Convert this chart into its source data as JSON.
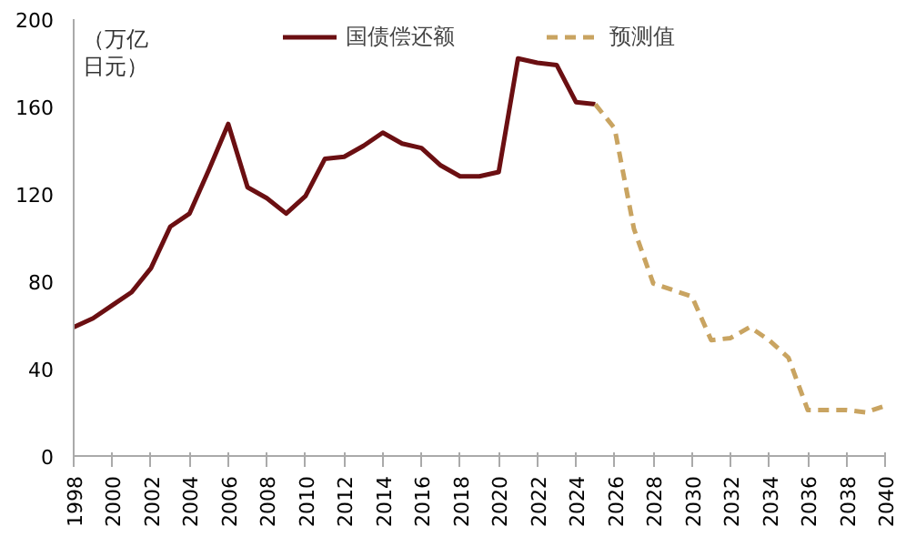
{
  "chart_data": {
    "type": "line",
    "ylabel": "（万亿日元）",
    "xlim": [
      1998,
      2040
    ],
    "xticks": [
      1998,
      2000,
      2002,
      2004,
      2006,
      2008,
      2010,
      2012,
      2014,
      2016,
      2018,
      2020,
      2022,
      2024,
      2026,
      2028,
      2030,
      2032,
      2034,
      2036,
      2038,
      2040
    ],
    "ylim": [
      0,
      200
    ],
    "yticks": [
      0,
      40,
      80,
      120,
      160,
      200
    ],
    "grid": false,
    "legend": "top",
    "series": [
      {
        "name": "国债偿还额",
        "color": "#6b0f12",
        "line_style": "solid",
        "x": [
          1998,
          1999,
          2000,
          2001,
          2002,
          2003,
          2004,
          2005,
          2006,
          2007,
          2008,
          2009,
          2010,
          2011,
          2012,
          2013,
          2014,
          2015,
          2016,
          2017,
          2018,
          2019,
          2020,
          2021,
          2022,
          2023,
          2024,
          2025
        ],
        "values": [
          59,
          63,
          69,
          75,
          86,
          105,
          111,
          131,
          152,
          123,
          118,
          111,
          119,
          136,
          137,
          142,
          148,
          143,
          141,
          133,
          128,
          128,
          130,
          182,
          180,
          179,
          162,
          161
        ]
      },
      {
        "name": "预测值",
        "color": "#c9a461",
        "line_style": "dashed",
        "x": [
          2025,
          2026,
          2027,
          2028,
          2029,
          2030,
          2031,
          2032,
          2033,
          2034,
          2035,
          2036,
          2037,
          2038,
          2039,
          2040
        ],
        "values": [
          161,
          150,
          104,
          79,
          76,
          73,
          53,
          54,
          59,
          53,
          45,
          21,
          21,
          21,
          20,
          23
        ]
      }
    ]
  }
}
